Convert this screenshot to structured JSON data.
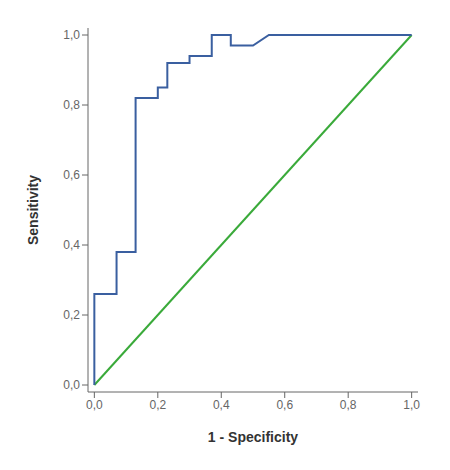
{
  "chart_data": {
    "type": "line",
    "xlabel": "1 - Specificity",
    "ylabel": "Sensitivity",
    "series": [
      {
        "color": "#3aaa3a",
        "x": [
          0.0,
          1.0
        ],
        "values": [
          0.0,
          1.0
        ]
      },
      {
        "color": "#3a5fa0",
        "x": [
          0.0,
          0.0,
          0.07,
          0.07,
          0.13,
          0.13,
          0.2,
          0.2,
          0.23,
          0.23,
          0.3,
          0.3,
          0.37,
          0.37,
          0.43,
          0.43,
          0.5,
          0.55,
          0.55,
          1.0
        ],
        "values": [
          0.0,
          0.26,
          0.26,
          0.38,
          0.38,
          0.82,
          0.82,
          0.85,
          0.85,
          0.92,
          0.92,
          0.94,
          0.94,
          1.0,
          1.0,
          0.97,
          0.97,
          1.0,
          1.0,
          1.0
        ]
      }
    ],
    "xlim": [
      -0.02,
      1.02
    ],
    "ylim": [
      -0.02,
      1.02
    ],
    "xticks": [
      {
        "value": 0.0,
        "label": "0,0"
      },
      {
        "value": 0.2,
        "label": "0,2"
      },
      {
        "value": 0.4,
        "label": "0,4"
      },
      {
        "value": 0.6,
        "label": "0,6"
      },
      {
        "value": 0.8,
        "label": "0,8"
      },
      {
        "value": 1.0,
        "label": "1,0"
      }
    ],
    "yticks": [
      {
        "value": 0.0,
        "label": "0,0"
      },
      {
        "value": 0.2,
        "label": "0,2"
      },
      {
        "value": 0.4,
        "label": "0,4"
      },
      {
        "value": 0.6,
        "label": "0,6"
      },
      {
        "value": 0.8,
        "label": "0,8"
      },
      {
        "value": 1.0,
        "label": "1,0"
      }
    ],
    "grid": false
  }
}
